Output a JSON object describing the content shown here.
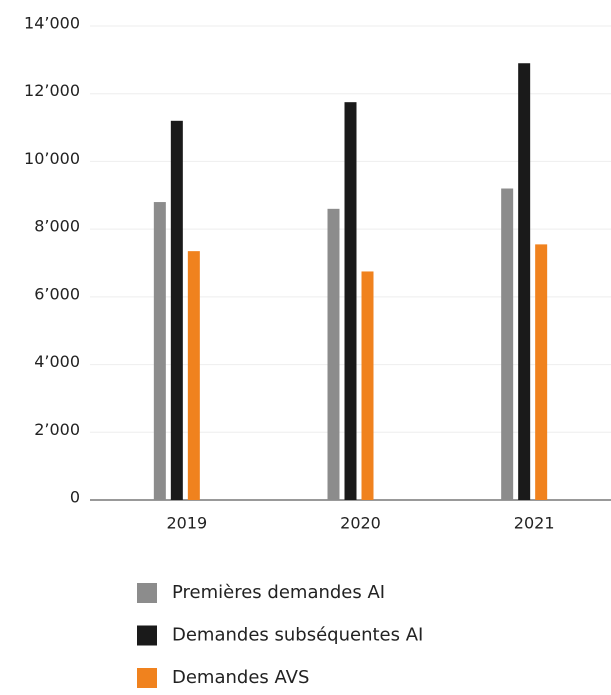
{
  "chart_data": {
    "type": "bar",
    "categories": [
      "2019",
      "2020",
      "2021"
    ],
    "series": [
      {
        "name": "Premières demandes AI",
        "color": "#8c8c8c",
        "values": [
          8800,
          8600,
          9200
        ]
      },
      {
        "name": "Demandes subséquentes AI",
        "color": "#1a1a1a",
        "values": [
          11200,
          11750,
          12900
        ]
      },
      {
        "name": "Demandes AVS",
        "color": "#f0821e",
        "values": [
          7350,
          6750,
          7550
        ]
      }
    ],
    "ylim": [
      0,
      14000
    ],
    "yticks": [
      0,
      {
        "value": 2000,
        "label": "2’000"
      },
      {
        "value": 4000,
        "label": "4’000"
      },
      {
        "value": 6000,
        "label": "6’000"
      },
      {
        "value": 8000,
        "label": "8’000"
      },
      {
        "value": 10000,
        "label": "10’000"
      },
      {
        "value": 12000,
        "label": "12’000"
      },
      {
        "value": 14000,
        "label": "14’000"
      }
    ],
    "grid": true
  }
}
